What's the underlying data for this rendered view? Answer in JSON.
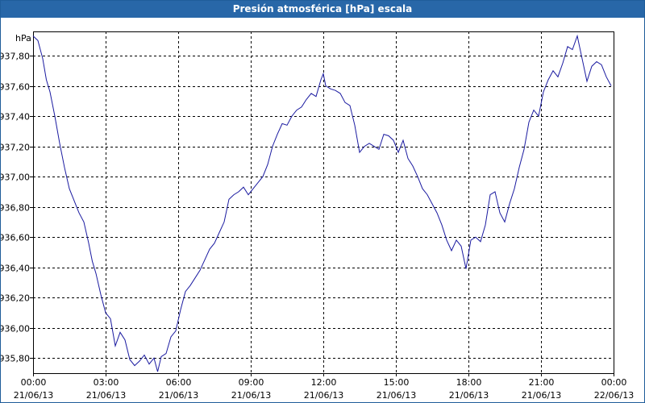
{
  "window": {
    "title": "Presión atmosférica [hPa] escala"
  },
  "chart_data": {
    "type": "line",
    "title": "Presión atmosférica [hPa] escala",
    "ylabel": "hPa",
    "xlabel": "",
    "ylim": [
      935.7,
      937.96
    ],
    "yticks": [
      935.8,
      936.0,
      936.2,
      936.4,
      936.6,
      936.8,
      937.0,
      937.2,
      937.4,
      937.6,
      937.8
    ],
    "ytick_labels": [
      "935,80",
      "936,00",
      "936,20",
      "936,40",
      "936,60",
      "936,80",
      "937,00",
      "937,20",
      "937,40",
      "937,60",
      "937,80"
    ],
    "xlim_hours": [
      0,
      24
    ],
    "xticks": [
      {
        "hour": 0,
        "time": "00:00",
        "date": "21/06/13"
      },
      {
        "hour": 3,
        "time": "03:00",
        "date": "21/06/13"
      },
      {
        "hour": 6,
        "time": "06:00",
        "date": "21/06/13"
      },
      {
        "hour": 9,
        "time": "09:00",
        "date": "21/06/13"
      },
      {
        "hour": 12,
        "time": "12:00",
        "date": "21/06/13"
      },
      {
        "hour": 15,
        "time": "15:00",
        "date": "21/06/13"
      },
      {
        "hour": 18,
        "time": "18:00",
        "date": "21/06/13"
      },
      {
        "hour": 21,
        "time": "21:00",
        "date": "21/06/13"
      },
      {
        "hour": 24,
        "time": "00:00",
        "date": "22/06/13"
      }
    ],
    "grid": true,
    "series": [
      {
        "color": "#1a1aa0",
        "x": [
          0,
          0.2,
          0.4,
          0.55,
          0.7,
          0.9,
          1.1,
          1.3,
          1.5,
          1.7,
          1.9,
          2.1,
          2.3,
          2.45,
          2.6,
          2.8,
          3.0,
          3.2,
          3.4,
          3.6,
          3.8,
          4.0,
          4.2,
          4.4,
          4.6,
          4.8,
          5.0,
          5.15,
          5.3,
          5.5,
          5.7,
          5.9,
          6.1,
          6.3,
          6.5,
          6.7,
          6.9,
          7.1,
          7.3,
          7.5,
          7.7,
          7.9,
          8.1,
          8.3,
          8.5,
          8.7,
          8.9,
          9.1,
          9.3,
          9.5,
          9.7,
          9.9,
          10.1,
          10.3,
          10.5,
          10.7,
          10.9,
          11.1,
          11.3,
          11.5,
          11.7,
          11.9,
          12.0,
          12.1,
          12.3,
          12.5,
          12.7,
          12.9,
          13.1,
          13.3,
          13.5,
          13.7,
          13.9,
          14.1,
          14.3,
          14.5,
          14.7,
          14.9,
          15.1,
          15.3,
          15.5,
          15.7,
          15.9,
          16.1,
          16.3,
          16.5,
          16.7,
          16.9,
          17.1,
          17.3,
          17.5,
          17.7,
          17.9,
          18.1,
          18.3,
          18.5,
          18.7,
          18.9,
          19.1,
          19.3,
          19.5,
          19.7,
          19.9,
          20.1,
          20.3,
          20.5,
          20.7,
          20.9,
          21.1,
          21.3,
          21.5,
          21.7,
          21.9,
          22.1,
          22.3,
          22.5,
          22.7,
          22.9,
          23.1,
          23.3,
          23.5,
          23.7,
          23.9
        ],
        "values": [
          937.93,
          937.9,
          937.78,
          937.64,
          937.56,
          937.4,
          937.22,
          937.06,
          936.92,
          936.84,
          936.76,
          936.7,
          936.56,
          936.44,
          936.36,
          936.22,
          936.1,
          936.06,
          935.88,
          935.97,
          935.92,
          935.79,
          935.75,
          935.78,
          935.82,
          935.76,
          935.8,
          935.71,
          935.81,
          935.83,
          935.94,
          935.98,
          936.12,
          936.24,
          936.28,
          936.33,
          936.38,
          936.45,
          936.52,
          936.56,
          936.63,
          936.7,
          936.85,
          936.88,
          936.9,
          936.93,
          936.88,
          936.92,
          936.96,
          937.0,
          937.08,
          937.2,
          937.28,
          937.35,
          937.34,
          937.4,
          937.44,
          937.46,
          937.51,
          937.55,
          937.53,
          937.64,
          937.68,
          937.6,
          937.58,
          937.57,
          937.55,
          937.49,
          937.47,
          937.34,
          937.16,
          937.2,
          937.22,
          937.2,
          937.18,
          937.28,
          937.27,
          937.24,
          937.16,
          937.24,
          937.12,
          937.07,
          937.0,
          936.92,
          936.88,
          936.82,
          936.76,
          936.68,
          936.58,
          936.51,
          936.58,
          936.54,
          936.39,
          936.58,
          936.6,
          936.57,
          936.68,
          936.88,
          936.9,
          936.76,
          936.7,
          936.82,
          936.92,
          937.06,
          937.18,
          937.36,
          937.44,
          937.4,
          937.56,
          937.64,
          937.7,
          937.66,
          937.75,
          937.86,
          937.84,
          937.93,
          937.78,
          937.63,
          937.73,
          937.76,
          937.74,
          937.66,
          937.6
        ]
      }
    ]
  }
}
